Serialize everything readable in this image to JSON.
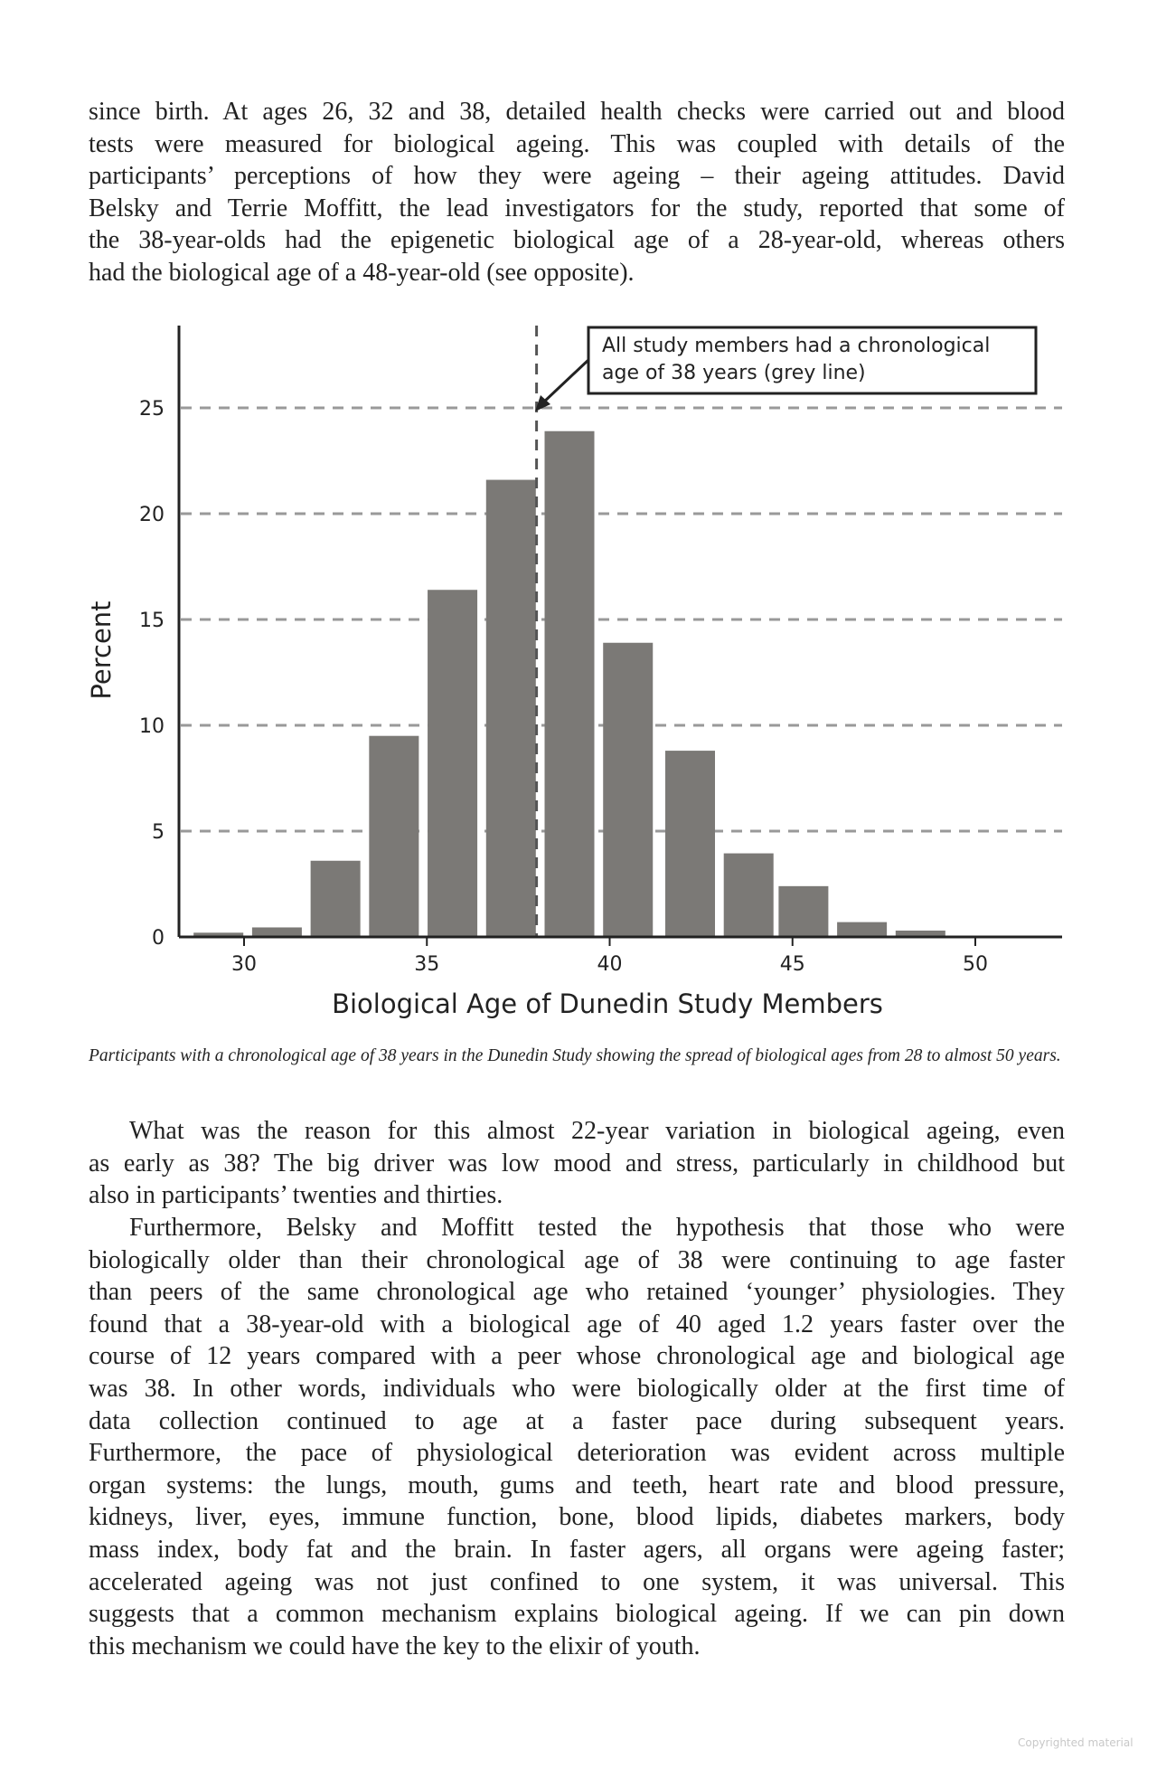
{
  "paragraph1": [
    "since birth. At ages 26, 32 and 38, detailed health checks were carried out and blood",
    "tests were measured for biological ageing. This was coupled with details of the",
    "participants’ perceptions of how they were ageing – their ageing attitudes. David",
    "Belsky and Terrie Moffitt, the lead investigators for the study, reported that some of",
    "the 38-year-olds had the epigenetic biological age of a 28-year-old, whereas others",
    "had the biological age of a 48-year-old (see opposite)."
  ],
  "chart_data": {
    "type": "bar",
    "xlabel": "Biological Age of Dunedin Study Members",
    "ylabel": "Percent",
    "xlim": [
      28.7,
      52.6
    ],
    "ylim": [
      0,
      28
    ],
    "x_ticks": [
      30,
      35,
      40,
      45,
      50
    ],
    "y_ticks": [
      0,
      5,
      10,
      15,
      20,
      25
    ],
    "grid": "horizontal dashed",
    "bin_centers": [
      29.3,
      30.9,
      32.5,
      34.1,
      35.7,
      37.3,
      38.9,
      40.5,
      42.2,
      43.8,
      45.3,
      46.9,
      48.5
    ],
    "values": [
      0.2,
      0.45,
      3.6,
      9.5,
      16.4,
      21.6,
      23.9,
      13.9,
      8.8,
      3.95,
      2.4,
      0.7,
      0.3
    ],
    "bar_color": "#7b7976",
    "reference_line": {
      "x": 38,
      "color": "#555555"
    },
    "annotation": [
      "All study members had a chronological",
      "age of 38 years (grey line)"
    ]
  },
  "caption": "Participants with a chronological age of 38 years in the Dunedin Study showing the spread of biological ages from 28 to almost 50 years.",
  "paragraph2": [
    "What was the reason for this almost 22-year variation in biological ageing, even",
    "as early as 38? The big driver was low mood and stress, particularly in childhood but",
    "also in participants’ twenties and thirties."
  ],
  "paragraph3": [
    "Furthermore, Belsky and Moffitt tested the hypothesis that those who were",
    "biologically older than their chronological age of 38 were continuing to age faster",
    "than peers of the same chronological age who retained ‘younger’ physiologies. They",
    "found that a 38-year-old with a biological age of 40 aged 1.2 years faster over the",
    "course of 12 years compared with a peer whose chronological age and biological age",
    "was 38. In other words, individuals who were biologically older at the first time of",
    "data collection continued to age at a faster pace during subsequent years.",
    "Furthermore, the pace of physiological deterioration was evident across multiple",
    "organ systems: the lungs, mouth, gums and teeth, heart rate and blood pressure,",
    "kidneys, liver, eyes, immune function, bone, blood lipids, diabetes markers, body",
    "mass index, body fat and the brain. In faster agers, all organs were ageing faster;",
    "accelerated ageing was not just confined to one system, it was universal. This",
    "suggests that a common mechanism explains biological ageing. If we can pin down",
    "this mechanism we could have the key to the elixir of youth."
  ],
  "watermark": "Copyrighted material"
}
